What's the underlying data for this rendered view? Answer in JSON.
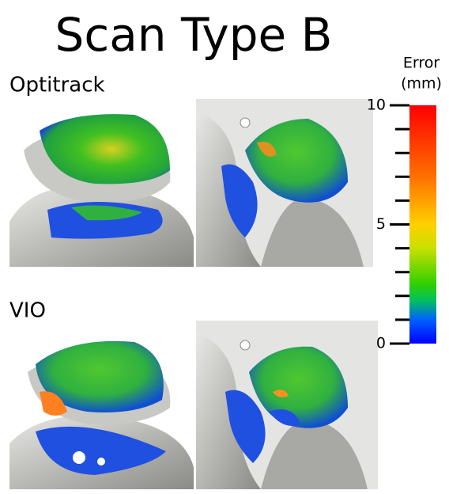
{
  "title": "Scan Type B",
  "rows": [
    {
      "label": "Optitrack"
    },
    {
      "label": "VIO"
    }
  ],
  "colorbar": {
    "label": [
      "Error",
      "(mm)"
    ],
    "lim": [
      0,
      10
    ],
    "ticks": [
      0,
      5,
      10
    ],
    "minor_ticks": [
      1,
      2,
      3,
      4,
      6,
      7,
      8,
      9
    ]
  }
}
